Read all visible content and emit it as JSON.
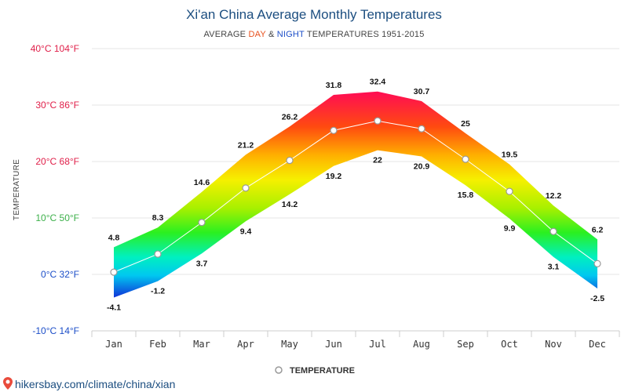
{
  "chart_data": {
    "type": "area",
    "title": "Xi'an China Average Monthly Temperatures",
    "subtitle": {
      "prefix": "AVERAGE ",
      "day": "DAY",
      "amp": " & ",
      "night": "NIGHT",
      "suffix": " TEMPERATURES 1951-2015"
    },
    "ylabel": "TEMPERATURE",
    "categories": [
      "Jan",
      "Feb",
      "Mar",
      "Apr",
      "May",
      "Jun",
      "Jul",
      "Aug",
      "Sep",
      "Oct",
      "Nov",
      "Dec"
    ],
    "series": [
      {
        "values": [
          4.8,
          8.3,
          14.6,
          21.2,
          26.2,
          31.8,
          32.4,
          30.7,
          25,
          19.5,
          12.2,
          6.2
        ]
      },
      {
        "values": [
          -4.1,
          -1.2,
          3.7,
          9.4,
          14.2,
          19.2,
          22,
          20.9,
          15.8,
          9.9,
          3.1,
          -2.5
        ]
      },
      {
        "name": "TEMPERATURE",
        "values": [
          0.4,
          3.6,
          9.2,
          15.3,
          20.2,
          25.5,
          27.2,
          25.8,
          20.4,
          14.7,
          7.6,
          1.9
        ]
      }
    ],
    "day_labels": [
      "4.8",
      "8.3",
      "14.6",
      "21.2",
      "26.2",
      "31.8",
      "32.4",
      "30.7",
      "25",
      "19.5",
      "12.2",
      "6.2"
    ],
    "night_labels": [
      "-4.1",
      "-1.2",
      "3.7",
      "9.4",
      "14.2",
      "19.2",
      "22",
      "20.9",
      "15.8",
      "9.9",
      "3.1",
      "-2.5"
    ],
    "ylim": [
      -10,
      40
    ],
    "yticks": [
      {
        "value": 40,
        "label": "40°C 104°F",
        "color": "#e0204a"
      },
      {
        "value": 30,
        "label": "30°C 86°F",
        "color": "#e0204a"
      },
      {
        "value": 20,
        "label": "20°C 68°F",
        "color": "#e0204a"
      },
      {
        "value": 10,
        "label": "10°C 50°F",
        "color": "#3cb04a"
      },
      {
        "value": 0,
        "label": "0°C 32°F",
        "color": "#1c4ec8"
      },
      {
        "value": -10,
        "label": "-10°C 14°F",
        "color": "#1c4ec8"
      }
    ],
    "legend": {
      "label": "TEMPERATURE",
      "position": "bottom-center"
    },
    "grid": true
  },
  "colors": {
    "title": "#1c4e80",
    "day": "#e8501c",
    "night": "#1c4ec8",
    "grid": "#e6e6e6",
    "mean_line": "#ffffff",
    "marker_stroke": "#999999"
  },
  "source": {
    "icon": "map-pin-icon",
    "text": "hikersbay.com/climate/china/xian"
  }
}
